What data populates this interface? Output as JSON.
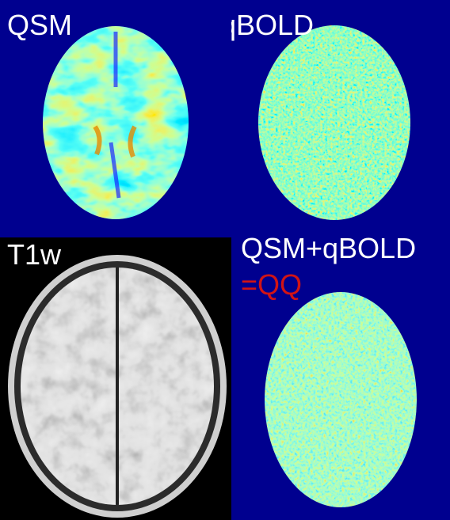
{
  "figure": {
    "background": "#00008c",
    "panels": [
      {
        "id": "qsm",
        "label": "QSM",
        "map": "jet-colormap",
        "description_color": "#ffffff"
      },
      {
        "id": "qbold",
        "label": "qBOLD",
        "map": "jet-colormap",
        "description_color": "#ffffff"
      },
      {
        "id": "t1w",
        "label": "T1w",
        "map": "grayscale",
        "description_color": "#ffffff"
      },
      {
        "id": "qq",
        "label": "QSM+qBOLD",
        "sublabel": "=QQ",
        "map": "jet-colormap",
        "description_color": "#ffffff",
        "sublabel_color": "#d21414"
      }
    ]
  }
}
